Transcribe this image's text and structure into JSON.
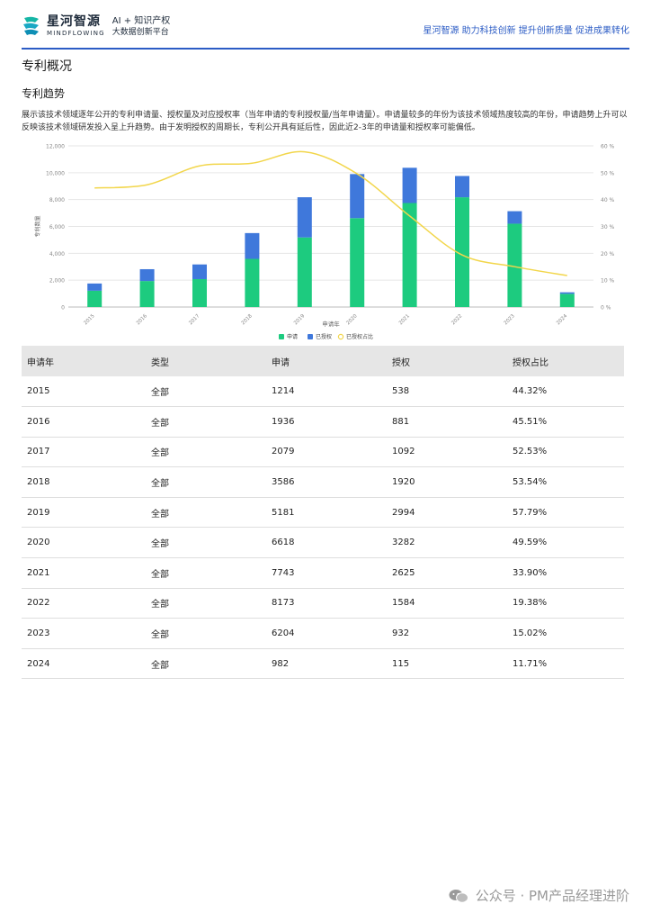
{
  "header": {
    "brand_cn": "星河智源",
    "brand_en": "MINDFLOWING",
    "sub_line1": "AI + 知识产权",
    "sub_line2": "大数据创新平台",
    "slogan": "星河智源 助力科技创新 提升创新质量 促进成果转化",
    "accent_color": "#2c5cc5"
  },
  "page_title": "专利概况",
  "section_title": "专利趋势",
  "description": "展示该技术领域逐年公开的专利申请量、授权量及对应授权率（当年申请的专利授权量/当年申请量）。申请量较多的年份为该技术领域热度较高的年份，申请趋势上升可以反映该技术领域研发投入呈上升趋势。由于发明授权的周期长，专利公开具有延后性，因此近2-3年的申请量和授权率可能偏低。",
  "chart_data": {
    "type": "bar",
    "categories": [
      "2015",
      "2016",
      "2017",
      "2018",
      "2019",
      "2020",
      "2021",
      "2022",
      "2023",
      "2024"
    ],
    "series": [
      {
        "name": "申请",
        "kind": "bar",
        "values": [
          1214,
          1936,
          2079,
          3586,
          5181,
          6618,
          7743,
          8173,
          6204,
          982
        ],
        "color": "#1dcb7f"
      },
      {
        "name": "已授权",
        "kind": "bar-stacked",
        "values": [
          538,
          881,
          1092,
          1920,
          2994,
          3282,
          2625,
          1584,
          932,
          115
        ],
        "color": "#3f78db"
      },
      {
        "name": "已授权占比",
        "kind": "line",
        "axis": "right",
        "values": [
          44.32,
          45.51,
          52.53,
          53.54,
          57.79,
          49.59,
          33.9,
          19.38,
          15.02,
          11.71
        ],
        "color": "#f2d64b"
      }
    ],
    "xlabel": "申请年",
    "ylabel": "专利数量",
    "ylim": [
      0,
      12000
    ],
    "y_ticks": [
      "0",
      "2,000",
      "4,000",
      "6,000",
      "8,000",
      "10,000",
      "12,000"
    ],
    "y2lim": [
      0,
      60
    ],
    "y2_ticks": [
      "0 %",
      "10 %",
      "20 %",
      "30 %",
      "40 %",
      "50 %",
      "60 %"
    ],
    "grid": true,
    "legend_position": "bottom-center"
  },
  "table": {
    "headers": [
      "申请年",
      "类型",
      "申请",
      "授权",
      "授权占比"
    ],
    "rows": [
      [
        "2015",
        "全部",
        "1214",
        "538",
        "44.32%"
      ],
      [
        "2016",
        "全部",
        "1936",
        "881",
        "45.51%"
      ],
      [
        "2017",
        "全部",
        "2079",
        "1092",
        "52.53%"
      ],
      [
        "2018",
        "全部",
        "3586",
        "1920",
        "53.54%"
      ],
      [
        "2019",
        "全部",
        "5181",
        "2994",
        "57.79%"
      ],
      [
        "2020",
        "全部",
        "6618",
        "3282",
        "49.59%"
      ],
      [
        "2021",
        "全部",
        "7743",
        "2625",
        "33.90%"
      ],
      [
        "2022",
        "全部",
        "8173",
        "1584",
        "19.38%"
      ],
      [
        "2023",
        "全部",
        "6204",
        "932",
        "15.02%"
      ],
      [
        "2024",
        "全部",
        "982",
        "115",
        "11.71%"
      ]
    ]
  },
  "watermark": "公众号 · PM产品经理进阶",
  "icons": {
    "logo": "mindflowing-logo-icon",
    "watermark": "wechat-icon"
  }
}
